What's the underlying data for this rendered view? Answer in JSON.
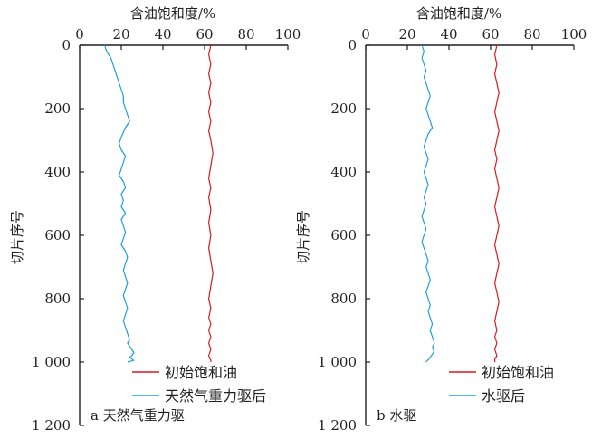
{
  "chart_data": [
    {
      "type": "line",
      "panel_label": "a 天然气重力驱",
      "xlabel": "含油饱和度/%",
      "ylabel": "切片序号",
      "xlim": [
        0,
        100
      ],
      "ylim": [
        1200,
        0
      ],
      "y_inverted": true,
      "x_axis_position": "top",
      "xticks": [
        "0",
        "20",
        "40",
        "60",
        "80",
        "100"
      ],
      "yticks": [
        "0",
        "200",
        "400",
        "600",
        "800",
        "1 000",
        "1 200"
      ],
      "grid": false,
      "legend_position": "bottom-right",
      "series": [
        {
          "name": "初始饱和油",
          "color": "#d7191c",
          "x": [
            63,
            62,
            63,
            62,
            63,
            62,
            63,
            62,
            63,
            62,
            63,
            64,
            63,
            62,
            63,
            62,
            63,
            62,
            63,
            62,
            63,
            64,
            63,
            62,
            63,
            62,
            63,
            62,
            63,
            62,
            63,
            62,
            63,
            63
          ],
          "y": [
            0,
            30,
            60,
            90,
            120,
            150,
            180,
            210,
            240,
            270,
            300,
            340,
            380,
            420,
            450,
            480,
            520,
            560,
            600,
            640,
            680,
            720,
            760,
            800,
            830,
            860,
            880,
            900,
            920,
            940,
            960,
            980,
            995,
            1000
          ]
        },
        {
          "name": "天然气重力驱后",
          "color": "#1e9bd7",
          "x": [
            12,
            13,
            15,
            16,
            17,
            18,
            19,
            20,
            21,
            21,
            22,
            23,
            24,
            22,
            20,
            19,
            20,
            22,
            21,
            20,
            19,
            21,
            22,
            20,
            21,
            20,
            22,
            20,
            21,
            22,
            21,
            20,
            22,
            23,
            22,
            21,
            22,
            23,
            22,
            21,
            22,
            23,
            22,
            21,
            22,
            23,
            24,
            23,
            24,
            25,
            26,
            25,
            24,
            25,
            26,
            24,
            23
          ],
          "y": [
            0,
            20,
            40,
            60,
            80,
            100,
            120,
            140,
            160,
            180,
            200,
            220,
            240,
            260,
            290,
            310,
            330,
            350,
            370,
            390,
            410,
            430,
            450,
            470,
            490,
            510,
            530,
            550,
            570,
            590,
            610,
            630,
            650,
            670,
            690,
            710,
            730,
            750,
            770,
            790,
            810,
            830,
            850,
            870,
            890,
            910,
            930,
            940,
            950,
            960,
            970,
            980,
            985,
            990,
            995,
            998,
            1000
          ]
        }
      ]
    },
    {
      "type": "line",
      "panel_label": "b 水驱",
      "xlabel": "含油饱和度/%",
      "ylabel": "切片序号",
      "xlim": [
        0,
        100
      ],
      "ylim": [
        1200,
        0
      ],
      "y_inverted": true,
      "x_axis_position": "top",
      "xticks": [
        "0",
        "20",
        "40",
        "60",
        "80",
        "100"
      ],
      "yticks": [
        "0",
        "200",
        "400",
        "600",
        "800",
        "1 000",
        "1 200"
      ],
      "grid": false,
      "legend_position": "bottom-right",
      "series": [
        {
          "name": "初始饱和油",
          "color": "#d7191c",
          "x": [
            63,
            62,
            63,
            62,
            63,
            64,
            63,
            62,
            63,
            64,
            63,
            62,
            63,
            62,
            63,
            64,
            63,
            62,
            63,
            64,
            63,
            62,
            63,
            64,
            63,
            62,
            63,
            64,
            63,
            62,
            63,
            62,
            63,
            62,
            63,
            62,
            62
          ],
          "y": [
            0,
            30,
            60,
            90,
            120,
            150,
            180,
            210,
            240,
            270,
            300,
            330,
            360,
            390,
            420,
            450,
            480,
            510,
            540,
            570,
            600,
            630,
            660,
            690,
            720,
            750,
            780,
            810,
            840,
            870,
            900,
            920,
            940,
            960,
            980,
            990,
            1000
          ]
        },
        {
          "name": "水驱后",
          "color": "#1e9bd7",
          "x": [
            27,
            28,
            27,
            28,
            29,
            28,
            29,
            30,
            31,
            30,
            29,
            30,
            31,
            32,
            30,
            29,
            28,
            29,
            30,
            29,
            28,
            29,
            30,
            29,
            28,
            29,
            28,
            27,
            28,
            29,
            28,
            27,
            28,
            29,
            30,
            29,
            30,
            31,
            30,
            29,
            30,
            31,
            30,
            31,
            32,
            31,
            32,
            33,
            32,
            33,
            32,
            31,
            30,
            29
          ],
          "y": [
            0,
            20,
            40,
            60,
            80,
            100,
            120,
            140,
            160,
            180,
            200,
            220,
            240,
            260,
            280,
            300,
            320,
            340,
            360,
            380,
            400,
            420,
            440,
            460,
            480,
            500,
            520,
            540,
            560,
            580,
            600,
            620,
            640,
            660,
            680,
            700,
            720,
            740,
            760,
            780,
            800,
            820,
            840,
            860,
            880,
            900,
            920,
            940,
            955,
            965,
            975,
            985,
            993,
            1000
          ]
        }
      ]
    }
  ]
}
